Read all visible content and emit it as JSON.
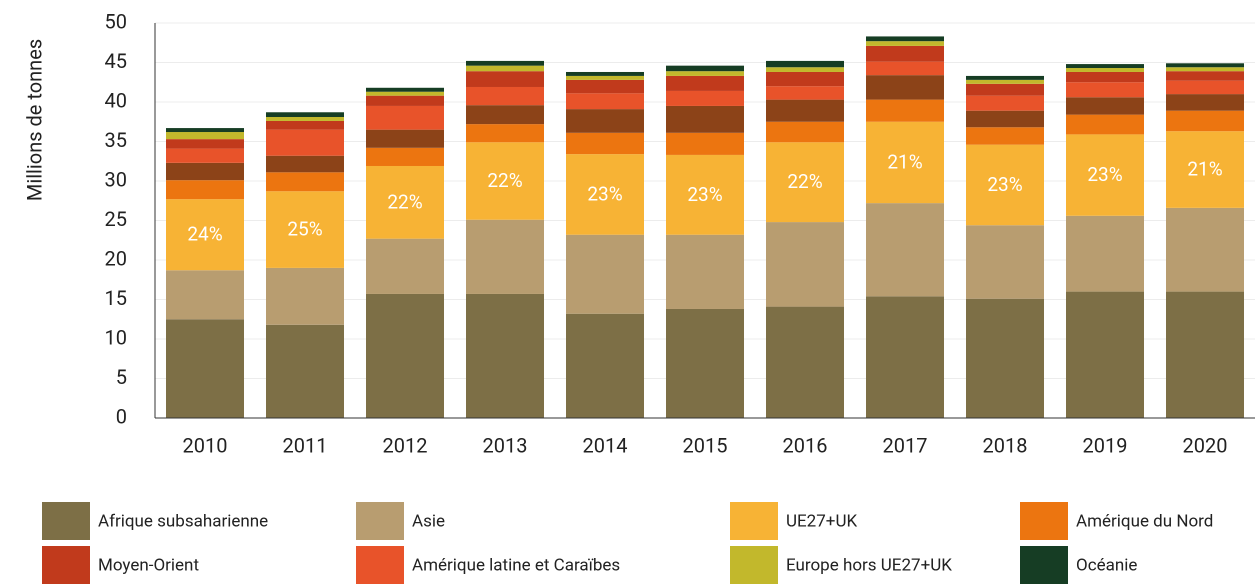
{
  "chart_data": {
    "type": "stacked_bar",
    "y_label": "Millions de tonnes",
    "categories": [
      "2010",
      "2011",
      "2012",
      "2013",
      "2014",
      "2015",
      "2016",
      "2017",
      "2018",
      "2019",
      "2020"
    ],
    "series": [
      {
        "name": "Afrique subsaharienne",
        "color": "#7d6f46",
        "values": [
          12.5,
          11.8,
          15.7,
          15.7,
          13.2,
          13.8,
          14.1,
          15.4,
          15.1,
          16.0,
          16.0
        ]
      },
      {
        "name": "Asie",
        "color": "#b89d70",
        "values": [
          6.2,
          7.2,
          7.0,
          9.4,
          10.0,
          9.4,
          10.7,
          11.8,
          9.3,
          9.6,
          10.6
        ]
      },
      {
        "name": "UE27+UK",
        "color": "#f7b335",
        "values": [
          9.0,
          9.7,
          9.2,
          9.8,
          10.2,
          10.1,
          10.1,
          10.3,
          10.2,
          10.3,
          9.7
        ],
        "shares": [
          "24%",
          "25%",
          "22%",
          "22%",
          "23%",
          "23%",
          "22%",
          "21%",
          "23%",
          "23%",
          "21%"
        ]
      },
      {
        "name": "Amérique du Nord",
        "color": "#ec7510",
        "values": [
          2.4,
          2.4,
          2.3,
          2.3,
          2.7,
          2.8,
          2.6,
          2.8,
          2.2,
          2.5,
          2.6
        ]
      },
      {
        "name": null,
        "color": "#8c4318",
        "values": [
          2.2,
          2.1,
          2.3,
          2.4,
          3.0,
          3.4,
          2.8,
          3.1,
          2.1,
          2.2,
          2.1
        ]
      },
      {
        "name": "Amérique latine et Caraïbes",
        "color": "#e8532a",
        "values": [
          1.8,
          3.3,
          3.0,
          2.3,
          2.0,
          1.9,
          1.7,
          1.7,
          1.9,
          1.9,
          1.7
        ]
      },
      {
        "name": "Moyen-Orient",
        "color": "#c13a1c",
        "values": [
          1.2,
          1.1,
          1.3,
          2.0,
          1.7,
          1.9,
          1.8,
          2.0,
          1.5,
          1.3,
          1.2
        ]
      },
      {
        "name": "Europe hors UE27+UK",
        "color": "#c2b82c",
        "values": [
          0.9,
          0.5,
          0.5,
          0.7,
          0.5,
          0.6,
          0.6,
          0.6,
          0.5,
          0.5,
          0.5
        ]
      },
      {
        "name": "Océanie",
        "color": "#163d24",
        "values": [
          0.5,
          0.6,
          0.5,
          0.6,
          0.5,
          0.7,
          0.8,
          0.6,
          0.5,
          0.5,
          0.5
        ]
      }
    ],
    "ylim": [
      0,
      50
    ],
    "yticks": [
      0,
      5,
      10,
      15,
      20,
      25,
      30,
      35,
      40,
      45,
      50
    ],
    "grid": true
  }
}
